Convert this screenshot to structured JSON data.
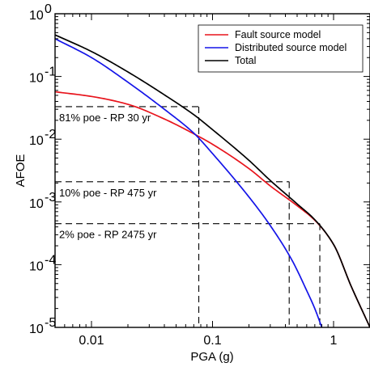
{
  "chart_data": {
    "type": "line",
    "xlabel": "PGA (g)",
    "ylabel": "AFOE",
    "x_scale": "log",
    "y_scale": "log",
    "xlim": [
      0.005,
      2
    ],
    "ylim": [
      1e-05,
      1
    ],
    "grid": false,
    "legend_position": "top-right",
    "x_ticks": [
      {
        "value": 0.01,
        "label": "0.01"
      },
      {
        "value": 0.1,
        "label": "0.1"
      },
      {
        "value": 1,
        "label": "1"
      }
    ],
    "y_ticks": [
      {
        "value": 1,
        "base": "10",
        "exp": "0"
      },
      {
        "value": 0.1,
        "base": "10",
        "exp": "-1"
      },
      {
        "value": 0.01,
        "base": "10",
        "exp": "-2"
      },
      {
        "value": 0.001,
        "base": "10",
        "exp": "-3"
      },
      {
        "value": 0.0001,
        "base": "10",
        "exp": "-4"
      },
      {
        "value": 1e-05,
        "base": "10",
        "exp": "-5"
      }
    ],
    "series": [
      {
        "name": "Fault source model",
        "color": "#e8141c",
        "x": [
          0.005,
          0.01,
          0.02,
          0.04,
          0.07,
          0.1,
          0.2,
          0.3,
          0.5,
          0.7,
          1.0,
          1.4,
          2.0
        ],
        "y": [
          0.057,
          0.048,
          0.036,
          0.021,
          0.0122,
          0.0083,
          0.0034,
          0.0018,
          0.00087,
          0.00051,
          0.00021,
          4.5e-05,
          1e-05
        ]
      },
      {
        "name": "Distributed source model",
        "color": "#1414e8",
        "x": [
          0.005,
          0.01,
          0.02,
          0.04,
          0.07,
          0.1,
          0.2,
          0.3,
          0.45,
          0.6,
          0.7,
          0.8
        ],
        "y": [
          0.4,
          0.2,
          0.081,
          0.03,
          0.0125,
          0.0059,
          0.0012,
          0.00042,
          0.000121,
          3.86e-05,
          1.99e-05,
          1e-05
        ]
      },
      {
        "name": "Total",
        "color": "#000000",
        "x": [
          0.005,
          0.01,
          0.02,
          0.04,
          0.07,
          0.1,
          0.2,
          0.3,
          0.5,
          0.7,
          1.0,
          1.4,
          2.0
        ],
        "y": [
          0.46,
          0.25,
          0.118,
          0.051,
          0.0246,
          0.0142,
          0.0046,
          0.0022,
          0.00093,
          0.00052,
          0.00021,
          4.5e-05,
          1e-05
        ]
      }
    ],
    "annotations": [
      {
        "label": "81% poe - RP 30 yr",
        "y": 0.033,
        "x": 0.077
      },
      {
        "label": "10% poe - RP 475 yr",
        "y": 0.0021,
        "x": 0.43
      },
      {
        "label": "2% poe - RP 2475 yr",
        "y": 0.00045,
        "x": 0.77
      }
    ]
  }
}
